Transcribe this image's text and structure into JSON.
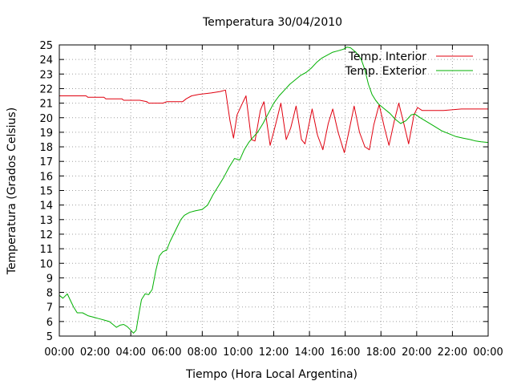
{
  "chart_data": {
    "type": "line",
    "title": "Temperatura 30/04/2010",
    "xlabel": "Tiempo (Hora Local Argentina)",
    "ylabel": "Temperatura (Grados Celsius)",
    "xlim": [
      0,
      24
    ],
    "ylim": [
      5,
      25
    ],
    "grid": true,
    "legend_position": "top-right",
    "x_ticks": [
      "00:00",
      "02:00",
      "04:00",
      "06:00",
      "08:00",
      "10:00",
      "12:00",
      "14:00",
      "16:00",
      "18:00",
      "20:00",
      "22:00",
      "00:00"
    ],
    "y_ticks": [
      "5",
      "6",
      "7",
      "8",
      "9",
      "10",
      "11",
      "12",
      "13",
      "14",
      "15",
      "16",
      "17",
      "18",
      "19",
      "20",
      "21",
      "22",
      "23",
      "24",
      "25"
    ],
    "series": [
      {
        "name": "Temp. Interior",
        "color": "#e0000f",
        "points": [
          [
            0.0,
            21.5
          ],
          [
            1.5,
            21.5
          ],
          [
            1.6,
            21.4
          ],
          [
            2.5,
            21.4
          ],
          [
            2.6,
            21.3
          ],
          [
            3.5,
            21.3
          ],
          [
            3.6,
            21.2
          ],
          [
            4.5,
            21.2
          ],
          [
            4.9,
            21.1
          ],
          [
            5.0,
            21.0
          ],
          [
            5.8,
            21.0
          ],
          [
            6.0,
            21.1
          ],
          [
            6.9,
            21.1
          ],
          [
            7.1,
            21.3
          ],
          [
            7.4,
            21.5
          ],
          [
            7.8,
            21.6
          ],
          [
            8.5,
            21.7
          ],
          [
            9.0,
            21.8
          ],
          [
            9.3,
            21.9
          ],
          [
            9.55,
            19.8
          ],
          [
            9.75,
            18.6
          ],
          [
            9.95,
            20.2
          ],
          [
            10.25,
            21.0
          ],
          [
            10.45,
            21.5
          ],
          [
            10.75,
            18.5
          ],
          [
            10.95,
            18.4
          ],
          [
            11.25,
            20.5
          ],
          [
            11.45,
            21.1
          ],
          [
            11.8,
            18.1
          ],
          [
            12.1,
            19.5
          ],
          [
            12.4,
            21.0
          ],
          [
            12.7,
            18.5
          ],
          [
            12.95,
            19.3
          ],
          [
            13.25,
            20.8
          ],
          [
            13.55,
            18.5
          ],
          [
            13.75,
            18.2
          ],
          [
            14.15,
            20.6
          ],
          [
            14.45,
            18.8
          ],
          [
            14.75,
            17.8
          ],
          [
            15.05,
            19.6
          ],
          [
            15.3,
            20.6
          ],
          [
            15.6,
            19.0
          ],
          [
            15.95,
            17.6
          ],
          [
            16.2,
            19.0
          ],
          [
            16.5,
            20.8
          ],
          [
            16.8,
            19.0
          ],
          [
            17.1,
            18.0
          ],
          [
            17.35,
            17.8
          ],
          [
            17.6,
            19.5
          ],
          [
            17.9,
            20.9
          ],
          [
            18.2,
            19.3
          ],
          [
            18.45,
            18.1
          ],
          [
            18.75,
            19.8
          ],
          [
            19.0,
            21.0
          ],
          [
            19.3,
            19.5
          ],
          [
            19.55,
            18.2
          ],
          [
            19.85,
            20.2
          ],
          [
            20.05,
            20.7
          ],
          [
            20.3,
            20.5
          ],
          [
            21.5,
            20.5
          ],
          [
            22.5,
            20.6
          ],
          [
            23.2,
            20.6
          ],
          [
            24.0,
            20.6
          ]
        ]
      },
      {
        "name": "Temp. Exterior",
        "color": "#00b000",
        "points": [
          [
            0.0,
            7.8
          ],
          [
            0.2,
            7.6
          ],
          [
            0.45,
            7.9
          ],
          [
            0.6,
            7.5
          ],
          [
            0.8,
            7.0
          ],
          [
            1.0,
            6.6
          ],
          [
            1.3,
            6.6
          ],
          [
            1.6,
            6.4
          ],
          [
            1.9,
            6.3
          ],
          [
            2.2,
            6.2
          ],
          [
            2.5,
            6.1
          ],
          [
            2.8,
            6.0
          ],
          [
            3.0,
            5.8
          ],
          [
            3.2,
            5.6
          ],
          [
            3.4,
            5.75
          ],
          [
            3.6,
            5.8
          ],
          [
            3.8,
            5.65
          ],
          [
            4.0,
            5.4
          ],
          [
            4.15,
            5.2
          ],
          [
            4.3,
            5.4
          ],
          [
            4.45,
            6.5
          ],
          [
            4.6,
            7.5
          ],
          [
            4.8,
            7.9
          ],
          [
            5.0,
            7.85
          ],
          [
            5.2,
            8.2
          ],
          [
            5.4,
            9.5
          ],
          [
            5.6,
            10.5
          ],
          [
            5.8,
            10.8
          ],
          [
            6.0,
            10.9
          ],
          [
            6.2,
            11.5
          ],
          [
            6.4,
            12.0
          ],
          [
            6.6,
            12.5
          ],
          [
            6.8,
            13.0
          ],
          [
            7.0,
            13.3
          ],
          [
            7.3,
            13.5
          ],
          [
            7.6,
            13.6
          ],
          [
            8.0,
            13.7
          ],
          [
            8.3,
            14.0
          ],
          [
            8.6,
            14.7
          ],
          [
            8.9,
            15.3
          ],
          [
            9.2,
            15.9
          ],
          [
            9.5,
            16.6
          ],
          [
            9.8,
            17.2
          ],
          [
            10.1,
            17.1
          ],
          [
            10.35,
            17.8
          ],
          [
            10.6,
            18.3
          ],
          [
            10.8,
            18.6
          ],
          [
            11.1,
            19.0
          ],
          [
            11.4,
            19.6
          ],
          [
            11.7,
            20.3
          ],
          [
            12.0,
            21.0
          ],
          [
            12.3,
            21.5
          ],
          [
            12.6,
            21.9
          ],
          [
            12.9,
            22.3
          ],
          [
            13.2,
            22.6
          ],
          [
            13.5,
            22.9
          ],
          [
            13.8,
            23.1
          ],
          [
            14.1,
            23.4
          ],
          [
            14.4,
            23.8
          ],
          [
            14.7,
            24.1
          ],
          [
            15.0,
            24.3
          ],
          [
            15.3,
            24.5
          ],
          [
            15.6,
            24.6
          ],
          [
            15.9,
            24.7
          ],
          [
            16.1,
            24.85
          ],
          [
            16.3,
            24.8
          ],
          [
            16.6,
            24.5
          ],
          [
            16.9,
            24.0
          ],
          [
            17.1,
            23.3
          ],
          [
            17.3,
            22.3
          ],
          [
            17.5,
            21.6
          ],
          [
            17.7,
            21.2
          ],
          [
            17.9,
            20.9
          ],
          [
            18.2,
            20.6
          ],
          [
            18.5,
            20.3
          ],
          [
            18.8,
            19.9
          ],
          [
            19.1,
            19.6
          ],
          [
            19.4,
            19.8
          ],
          [
            19.7,
            20.2
          ],
          [
            19.9,
            20.25
          ],
          [
            20.2,
            20.0
          ],
          [
            20.6,
            19.7
          ],
          [
            21.0,
            19.4
          ],
          [
            21.4,
            19.1
          ],
          [
            21.8,
            18.9
          ],
          [
            22.2,
            18.7
          ],
          [
            22.6,
            18.6
          ],
          [
            23.0,
            18.5
          ],
          [
            23.3,
            18.4
          ],
          [
            23.6,
            18.35
          ],
          [
            24.0,
            18.3
          ]
        ]
      }
    ]
  }
}
